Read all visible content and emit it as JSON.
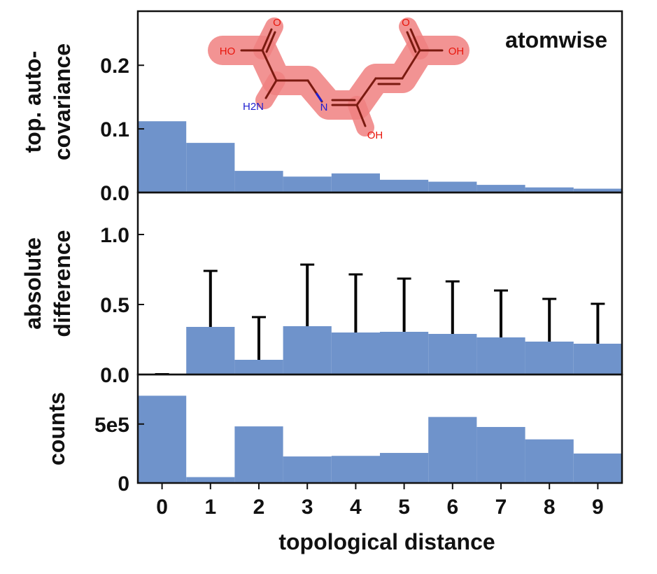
{
  "colors": {
    "bar": "#6f93cb",
    "axis": "#111111",
    "highlight": "#f08080",
    "bond": "#7a1a10",
    "oxygen": "#e8160c",
    "nitrogen": "#1f1fd0",
    "errorbar": "#000000"
  },
  "molecule": {
    "atoms": {
      "o_top_left": "O",
      "ho_left": "HO",
      "nh2": "H2N",
      "n_imine": "N",
      "oh_bottom": "OH",
      "o_top_right": "O",
      "oh_right": "OH"
    }
  },
  "chart_data": [
    {
      "type": "bar",
      "title": "atomwise",
      "ylabel_lines": [
        "top. auto-",
        "covariance"
      ],
      "x": [
        0,
        1,
        2,
        3,
        4,
        5,
        6,
        7,
        8,
        9
      ],
      "values": [
        0.112,
        0.078,
        0.034,
        0.025,
        0.03,
        0.02,
        0.017,
        0.012,
        0.008,
        0.006
      ],
      "ylim": [
        0,
        0.285
      ],
      "yticks": [
        0.0,
        0.1,
        0.2
      ],
      "ytick_labels": [
        "0.0",
        "0.1",
        "0.2"
      ]
    },
    {
      "type": "bar",
      "ylabel_lines": [
        "absolute",
        "difference"
      ],
      "x": [
        0,
        1,
        2,
        3,
        4,
        5,
        6,
        7,
        8,
        9
      ],
      "values": [
        0.0,
        0.34,
        0.105,
        0.345,
        0.3,
        0.305,
        0.29,
        0.265,
        0.235,
        0.22
      ],
      "error_top": [
        0.0,
        0.74,
        0.41,
        0.785,
        0.715,
        0.685,
        0.665,
        0.6,
        0.54,
        0.505
      ],
      "ylim": [
        0,
        1.3
      ],
      "yticks": [
        0.0,
        0.5,
        1.0
      ],
      "ytick_labels": [
        "0.0",
        "0.5",
        "1.0"
      ]
    },
    {
      "type": "bar",
      "ylabel_lines": [
        "counts"
      ],
      "x": [
        0,
        1,
        2,
        3,
        4,
        5,
        6,
        7,
        8,
        9
      ],
      "values": [
        740000,
        50000,
        480000,
        225000,
        230000,
        255000,
        560000,
        475000,
        370000,
        250000
      ],
      "ylim": [
        0,
        920000
      ],
      "yticks": [
        0,
        500000
      ],
      "ytick_labels": [
        "0",
        "5e5"
      ],
      "xlabel": "topological distance",
      "xtick_labels": [
        "0",
        "1",
        "2",
        "3",
        "4",
        "5",
        "6",
        "7",
        "8",
        "9"
      ]
    }
  ]
}
